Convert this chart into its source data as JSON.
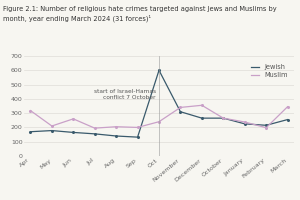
{
  "title_line1": "Figure 2.1: Number of religious hate crimes targeted against Jews and Muslims by",
  "title_line2": "month, year ending March 2024 (31 forces)¹",
  "ylim": [
    0,
    700
  ],
  "yticks": [
    0,
    100,
    200,
    300,
    400,
    500,
    600,
    700
  ],
  "x_labels": [
    "Apr",
    "May",
    "Jun",
    "Jul",
    "Aug",
    "Sep",
    "Oct",
    "November",
    "December",
    "October",
    "January",
    "February",
    "March"
  ],
  "jewish_values": [
    170,
    178,
    165,
    155,
    140,
    132,
    600,
    310,
    265,
    265,
    225,
    215,
    255
  ],
  "muslim_values": [
    318,
    210,
    260,
    195,
    205,
    200,
    240,
    340,
    355,
    265,
    238,
    198,
    345
  ],
  "jewish_color": "#3a5a6c",
  "muslim_color": "#c9a0c8",
  "annotation_text": "start of Israel-Hamas\nconflict 7 October",
  "vline_x": 6,
  "legend_jewish": "Jewish",
  "legend_muslim": "Muslim",
  "background_color": "#f7f6f1",
  "title_fontsize": 4.8,
  "tick_fontsize": 4.5,
  "legend_fontsize": 4.8,
  "annotation_fontsize": 4.2,
  "grid_color": "#e0ddd8"
}
